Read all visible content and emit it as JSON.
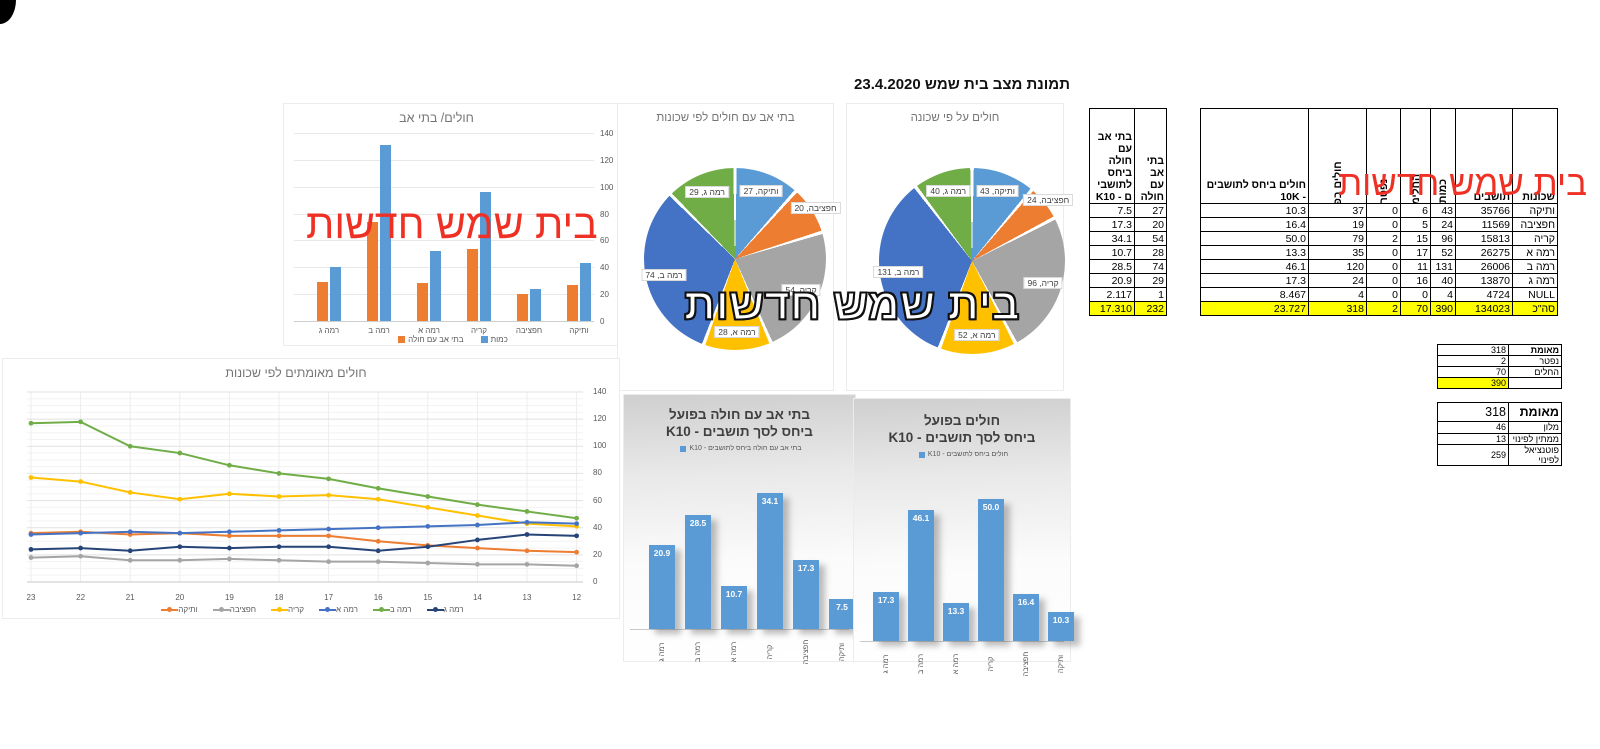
{
  "title": "תמונת מצב בית שמש 23.4.2020",
  "watermark": {
    "text": "בית שמש חדשות",
    "red_color": "#ee3124"
  },
  "palette": {
    "blue": "#4472C4",
    "light_blue": "#5B9BD5",
    "orange": "#ED7D31",
    "gray": "#A5A5A5",
    "yellow": "#FFC000",
    "green": "#70AD47",
    "navy": "#264478",
    "highlight": "#FFFF00"
  },
  "chart_data": [
    {
      "id": "patients_households_bar",
      "type": "bar",
      "title": "חולים/ בתי אב",
      "categories": [
        "רמה ג",
        "רמה ב",
        "רמה א",
        "קריה",
        "חפציבה",
        "ותיקה"
      ],
      "series": [
        {
          "name": "כמות",
          "color": "#5B9BD5",
          "values": [
            40,
            131,
            52,
            96,
            24,
            43
          ]
        },
        {
          "name": "בתי אב עם חולה",
          "color": "#ED7D31",
          "values": [
            29,
            74,
            28,
            54,
            20,
            27
          ]
        }
      ],
      "ylim": [
        0,
        140
      ],
      "ytick_step": 20,
      "legend_position": "bottom",
      "grid": true
    },
    {
      "id": "households_pie",
      "type": "pie",
      "title": "בתי אב עם חולים לפי שכונות",
      "labels": [
        "ותיקה",
        "חפציבה",
        "קריה",
        "רמה א",
        "רמה ב",
        "רמה ג"
      ],
      "values": [
        27,
        20,
        54,
        28,
        74,
        29
      ],
      "colors": [
        "#5B9BD5",
        "#ED7D31",
        "#A5A5A5",
        "#FFC000",
        "#4472C4",
        "#70AD47"
      ]
    },
    {
      "id": "patients_pie",
      "type": "pie",
      "title": "חולים על פי שכונה",
      "labels": [
        "ותיקה",
        "חפציבה",
        "קריה",
        "רמה א",
        "רמה ב",
        "רמה ג"
      ],
      "values": [
        43,
        24,
        96,
        52,
        131,
        40
      ],
      "colors": [
        "#5B9BD5",
        "#ED7D31",
        "#A5A5A5",
        "#FFC000",
        "#4472C4",
        "#70AD47"
      ]
    },
    {
      "id": "confirmed_trend_line",
      "type": "line",
      "title": "חולים מאומתים לפי שכונות",
      "x": [
        "23",
        "22",
        "21",
        "20",
        "19",
        "18",
        "17",
        "16",
        "15",
        "14",
        "13",
        "12"
      ],
      "ylim": [
        0,
        140
      ],
      "ytick_step": 20,
      "legend_position": "bottom",
      "grid": true,
      "series": [
        {
          "name": "ותיקה",
          "color": "#ED7D31",
          "values": [
            36,
            37,
            35,
            36,
            34,
            34,
            34,
            30,
            27,
            25,
            23,
            22
          ]
        },
        {
          "name": "חפציבה",
          "color": "#A5A5A5",
          "values": [
            18,
            19,
            16,
            16,
            17,
            16,
            15,
            15,
            14,
            13,
            13,
            12
          ]
        },
        {
          "name": "קריה",
          "color": "#FFC000",
          "values": [
            77,
            74,
            66,
            61,
            65,
            63,
            64,
            61,
            55,
            49,
            43,
            41
          ]
        },
        {
          "name": "רמה א",
          "color": "#4472C4",
          "values": [
            35,
            36,
            37,
            36,
            37,
            38,
            39,
            40,
            41,
            42,
            44,
            43
          ]
        },
        {
          "name": "רמה ב",
          "color": "#70AD47",
          "values": [
            117,
            118,
            100,
            95,
            86,
            80,
            76,
            69,
            63,
            57,
            52,
            47
          ]
        },
        {
          "name": "רמה ג",
          "color": "#264478",
          "values": [
            24,
            25,
            23,
            26,
            25,
            26,
            26,
            23,
            26,
            31,
            35,
            34
          ]
        }
      ]
    },
    {
      "id": "households_k10_bar",
      "type": "bar",
      "title_lines": [
        "בתי אב עם חולה בפועל",
        "ביחס לסך תושבים - K10"
      ],
      "legend": "בתי אב עם חולה ביחס לתושבים - K10",
      "bar_color": "#5B9BD5",
      "categories": [
        "רמה ג",
        "רמה ב",
        "רמה א",
        "קריה",
        "חפציבה",
        "ותיקה"
      ],
      "values": [
        "20.9",
        "28.5",
        "10.7",
        "34.1",
        "17.3",
        "7.5"
      ]
    },
    {
      "id": "patients_k10_bar",
      "type": "bar",
      "title_lines": [
        "חולים בפועל",
        "ביחס לסך תושבים - K10"
      ],
      "legend": "חולים ביחס לתושבים - K10",
      "bar_color": "#5B9BD5",
      "categories": [
        "רמה ג",
        "רמה ב",
        "רמה א",
        "קריה",
        "חפציבה",
        "ותיקה"
      ],
      "values": [
        "17.3",
        "46.1",
        "13.3",
        "50.0",
        "16.4",
        "10.3"
      ]
    }
  ],
  "summary_table": {
    "headers": {
      "neighborhoods": "שכונות",
      "residents": "תושבים",
      "count": "כמות",
      "recovered": "החלימו",
      "deceased": "נפטר",
      "active": "חולים בפועל",
      "per_10k": "חולים ביחס לתושבים - 10K"
    },
    "rows": [
      [
        "ותיקה",
        "35766",
        "43",
        "6",
        "0",
        "37",
        "10.3"
      ],
      [
        "חפציבה",
        "11569",
        "24",
        "5",
        "0",
        "19",
        "16.4"
      ],
      [
        "קריה",
        "15813",
        "96",
        "15",
        "2",
        "79",
        "50.0"
      ],
      [
        "רמה א",
        "26275",
        "52",
        "17",
        "0",
        "35",
        "13.3"
      ],
      [
        "רמה ב",
        "26006",
        "131",
        "11",
        "0",
        "120",
        "46.1"
      ],
      [
        "רמה ג",
        "13870",
        "40",
        "16",
        "0",
        "24",
        "17.3"
      ],
      [
        "NULL",
        "4724",
        "4",
        "0",
        "0",
        "4",
        "8.467"
      ]
    ],
    "total": [
      "סה\"כ",
      "134023",
      "390",
      "70",
      "2",
      "318",
      "23.727"
    ]
  },
  "households_table": {
    "headers": {
      "households": "בתי אב עם חולה",
      "per_k10": "בתי אב עם חולה ביחס לתושבי ם - K10"
    },
    "rows": [
      [
        "27",
        "7.5"
      ],
      [
        "20",
        "17.3"
      ],
      [
        "54",
        "34.1"
      ],
      [
        "28",
        "10.7"
      ],
      [
        "74",
        "28.5"
      ],
      [
        "29",
        "20.9"
      ],
      [
        "1",
        "2.117"
      ]
    ],
    "total": [
      "232",
      "17.310"
    ]
  },
  "confirmed_table": {
    "rows": [
      [
        "מאומת",
        "318"
      ],
      [
        "נפטר",
        "2"
      ],
      [
        "החלים",
        "70"
      ],
      [
        "",
        "390"
      ]
    ]
  },
  "location_table": {
    "header": [
      "מאומת",
      "318"
    ],
    "rows": [
      [
        "מלון",
        "46"
      ],
      [
        "ממתין לפינוי",
        "13"
      ],
      [
        "פוטנציאל לפינוי",
        "259"
      ]
    ]
  }
}
